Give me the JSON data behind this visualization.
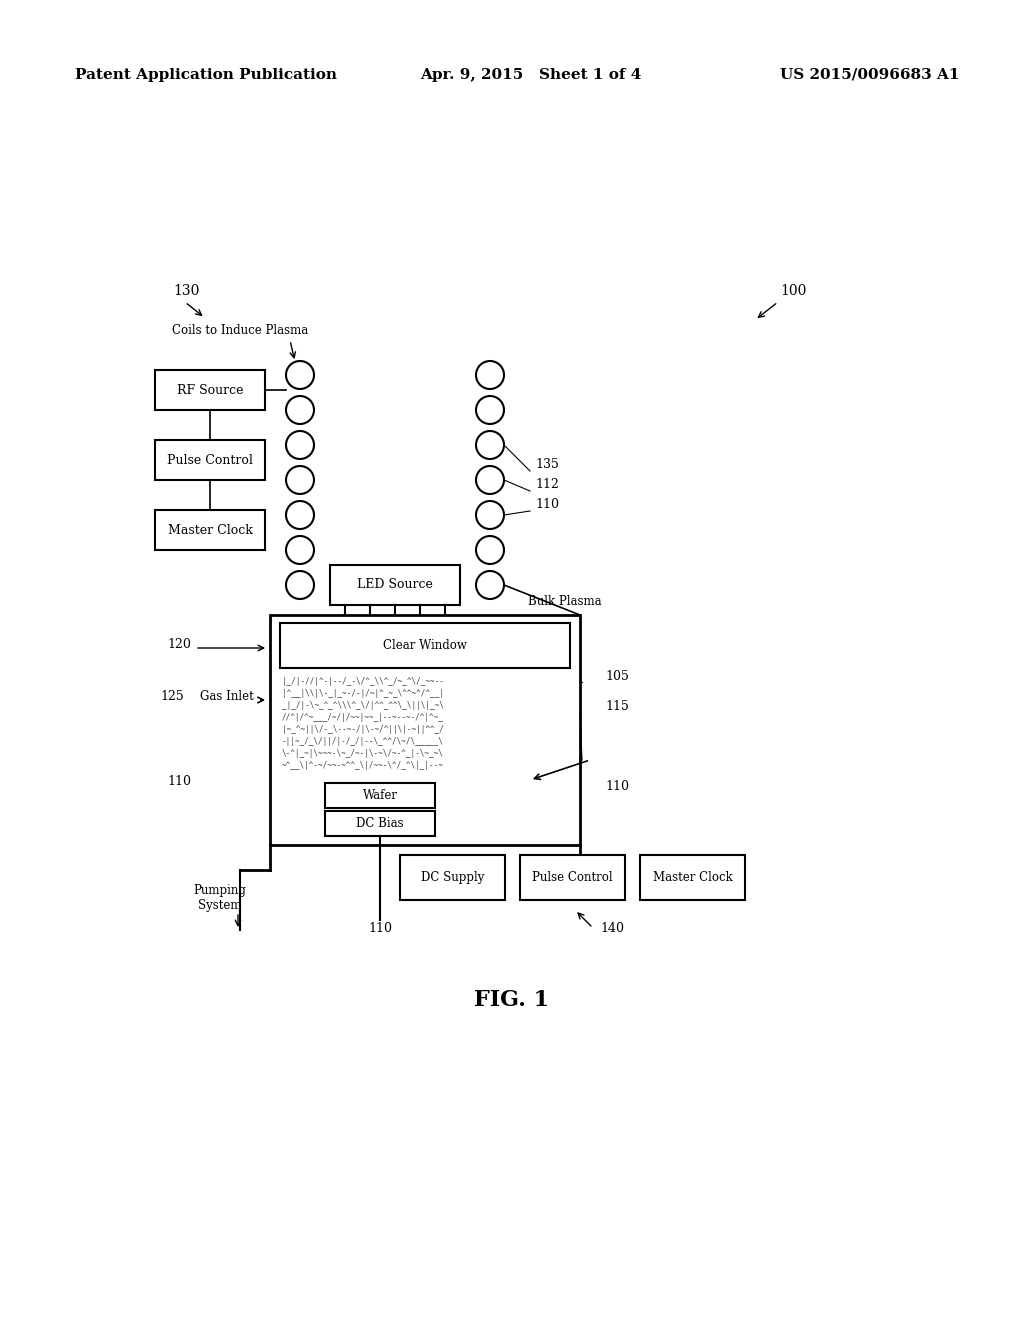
{
  "bg_color": "#ffffff",
  "header_left": "Patent Application Publication",
  "header_center": "Apr. 9, 2015   Sheet 1 of 4",
  "header_right": "US 2015/0096683 A1",
  "fig_label": "FIG. 1",
  "label_100": "100",
  "label_130": "130",
  "label_110_top": "110",
  "label_112": "112",
  "label_135": "135",
  "label_120": "120",
  "label_125": "125",
  "label_gas_inlet": "Gas Inlet",
  "label_110_left": "110",
  "label_110_right": "110",
  "label_110_bottom": "110",
  "label_105": "105",
  "label_115": "115",
  "label_140": "140",
  "label_pumping": "Pumping\nSystem",
  "label_bulk_plasma": "Bulk Plasma",
  "label_coils": "Coils to Induce Plasma",
  "box_rf": "RF Source",
  "box_pulse_ctrl_top": "Pulse Control",
  "box_master_clk_top": "Master Clock",
  "box_led": "LED Source",
  "box_clear_window": "Clear Window",
  "box_wafer": "Wafer",
  "box_dc_bias": "DC Bias",
  "box_dc_supply": "DC Supply",
  "box_pulse_ctrl_bot": "Pulse Control",
  "box_master_clk_bot": "Master Clock"
}
